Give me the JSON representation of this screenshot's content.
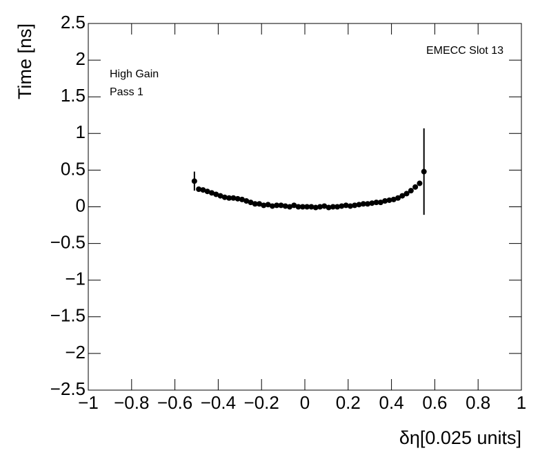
{
  "chart_data": {
    "type": "scatter",
    "xlabel": "δη[0.025 units]",
    "ylabel": "Time [ns]",
    "annotations": [
      "EMECC Slot 13",
      "High Gain",
      "Pass 1"
    ],
    "color": "#000000",
    "x": [
      -0.51,
      -0.49,
      -0.47,
      -0.45,
      -0.43,
      -0.41,
      -0.39,
      -0.37,
      -0.35,
      -0.33,
      -0.31,
      -0.29,
      -0.27,
      -0.25,
      -0.23,
      -0.21,
      -0.19,
      -0.17,
      -0.15,
      -0.13,
      -0.11,
      -0.09,
      -0.07,
      -0.05,
      -0.03,
      -0.01,
      0.01,
      0.03,
      0.05,
      0.07,
      0.09,
      0.11,
      0.13,
      0.15,
      0.17,
      0.19,
      0.21,
      0.23,
      0.25,
      0.27,
      0.29,
      0.31,
      0.33,
      0.35,
      0.37,
      0.39,
      0.41,
      0.43,
      0.45,
      0.47,
      0.49,
      0.51,
      0.53,
      0.55
    ],
    "values": [
      0.35,
      0.24,
      0.23,
      0.21,
      0.19,
      0.17,
      0.15,
      0.13,
      0.12,
      0.12,
      0.11,
      0.1,
      0.08,
      0.06,
      0.04,
      0.04,
      0.02,
      0.03,
      0.01,
      0.02,
      0.02,
      0.01,
      0.0,
      0.02,
      0.0,
      0.0,
      0.0,
      0.0,
      -0.01,
      0.0,
      0.01,
      -0.01,
      0.0,
      0.0,
      0.01,
      0.02,
      0.01,
      0.02,
      0.03,
      0.04,
      0.04,
      0.05,
      0.06,
      0.06,
      0.08,
      0.09,
      0.1,
      0.12,
      0.15,
      0.18,
      0.22,
      0.27,
      0.32,
      0.48
    ],
    "errors": [
      0.13,
      0.01,
      0.01,
      0.01,
      0.01,
      0.01,
      0.01,
      0.01,
      0.01,
      0.01,
      0.01,
      0.01,
      0.01,
      0.01,
      0.01,
      0.01,
      0.01,
      0.01,
      0.01,
      0.01,
      0.01,
      0.01,
      0.01,
      0.01,
      0.01,
      0.01,
      0.01,
      0.01,
      0.01,
      0.01,
      0.01,
      0.01,
      0.01,
      0.01,
      0.01,
      0.01,
      0.01,
      0.01,
      0.01,
      0.01,
      0.01,
      0.01,
      0.01,
      0.01,
      0.01,
      0.01,
      0.01,
      0.01,
      0.01,
      0.01,
      0.01,
      0.01,
      0.02,
      0.59
    ],
    "xlim": [
      -1,
      1
    ],
    "ylim": [
      -2.5,
      2.5
    ],
    "xticks": [
      {
        "value": -1,
        "label": "−1"
      },
      {
        "value": -0.8,
        "label": "−0.8"
      },
      {
        "value": -0.6,
        "label": "−0.6"
      },
      {
        "value": -0.4,
        "label": "−0.4"
      },
      {
        "value": -0.2,
        "label": "−0.2"
      },
      0,
      0.2,
      0.4,
      0.6,
      0.8,
      1
    ],
    "yticks": [
      {
        "value": -2.5,
        "label": "−2.5"
      },
      {
        "value": -2,
        "label": "−2"
      },
      {
        "value": -1.5,
        "label": "−1.5"
      },
      {
        "value": -1,
        "label": "−1"
      },
      {
        "value": -0.5,
        "label": "−0.5"
      },
      0,
      0.5,
      1,
      1.5,
      2,
      2.5
    ]
  }
}
